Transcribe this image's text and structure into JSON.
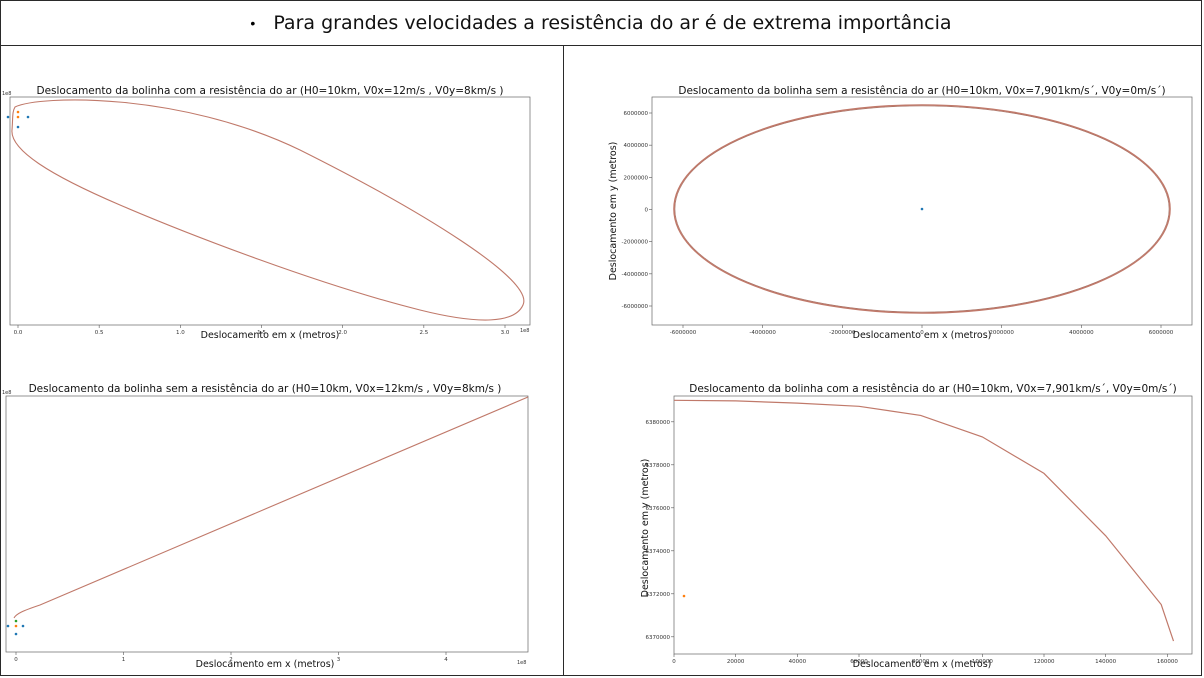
{
  "header": {
    "bullet": "•",
    "text": "Para grandes velocidades a resistência do ar é de extrema importância"
  },
  "colors": {
    "curve": "#c0796a",
    "blue": "#1f77b4",
    "orange": "#ff7f0e",
    "green": "#2ca02c"
  },
  "chart_data": [
    {
      "id": "p1",
      "type": "line",
      "title": "Deslocamento da bolinha com a resistência do ar (H0=10km, V0x=12m/s , V0y=8km/s )",
      "xlabel": "Deslocamento em x (metros)",
      "ylabel": "",
      "x_ticks": [
        "0.0",
        "0.5",
        "1.0",
        "1.5",
        "2.0",
        "2.5",
        "3.0"
      ],
      "x_offset": "1e8",
      "y_offset": "1e8",
      "series": [
        {
          "shape": "tilted-ellipse"
        }
      ],
      "markers": [
        "blue",
        "orange",
        "blue",
        "blue",
        "orange"
      ]
    },
    {
      "id": "p2",
      "type": "line",
      "title": "Deslocamento da bolinha sem a resistência do ar (H0=10km, V0x=7,901km/s´, V0y=0m/s´)",
      "xlabel": "Deslocamento em x (metros)",
      "ylabel": "Deslocamento em y (metros)",
      "x_ticks": [
        "-6000000",
        "-4000000",
        "-2000000",
        "0",
        "2000000",
        "4000000",
        "6000000"
      ],
      "y_ticks": [
        "6000000",
        "4000000",
        "2000000",
        "0",
        "-2000000",
        "-4000000",
        "-6000000"
      ],
      "series": [
        {
          "shape": "ellipse",
          "rx": 6380000,
          "ry": 6380000
        }
      ],
      "markers": [
        "blue"
      ]
    },
    {
      "id": "p3",
      "type": "line",
      "title": "Deslocamento da bolinha sem a resistência do ar (H0=10km, V0x=12km/s , V0y=8km/s )",
      "xlabel": "Deslocamento em x (metros)",
      "ylabel": "",
      "x_ticks": [
        "0",
        "1",
        "2",
        "3",
        "4"
      ],
      "x_offset": "1e8",
      "y_offset": "1e8",
      "series": [
        {
          "shape": "straight-line"
        }
      ],
      "markers": [
        "blue",
        "orange",
        "blue",
        "blue",
        "green"
      ]
    },
    {
      "id": "p4",
      "type": "line",
      "title": "Deslocamento da bolinha com a resistência do ar (H0=10km, V0x=7,901km/s´, V0y=0m/s´)",
      "xlabel": "Deslocamento em x (metros)",
      "ylabel": "Deslocamento em y (metros)",
      "x_ticks": [
        "0",
        "20000",
        "40000",
        "60000",
        "80000",
        "100000",
        "120000",
        "140000",
        "160000"
      ],
      "y_ticks": [
        "6380000",
        "6378000",
        "6376000",
        "6374000",
        "6372000",
        "6370000"
      ],
      "xlim": [
        0,
        168000
      ],
      "ylim": [
        6369200,
        6381200
      ],
      "series": [
        {
          "x": [
            0,
            20000,
            40000,
            60000,
            80000,
            100000,
            120000,
            140000,
            158000,
            162000
          ],
          "y": [
            6381000,
            6380970,
            6380870,
            6380720,
            6380300,
            6379300,
            6377600,
            6374700,
            6371500,
            6369800
          ]
        }
      ],
      "markers": [
        "orange"
      ]
    }
  ]
}
